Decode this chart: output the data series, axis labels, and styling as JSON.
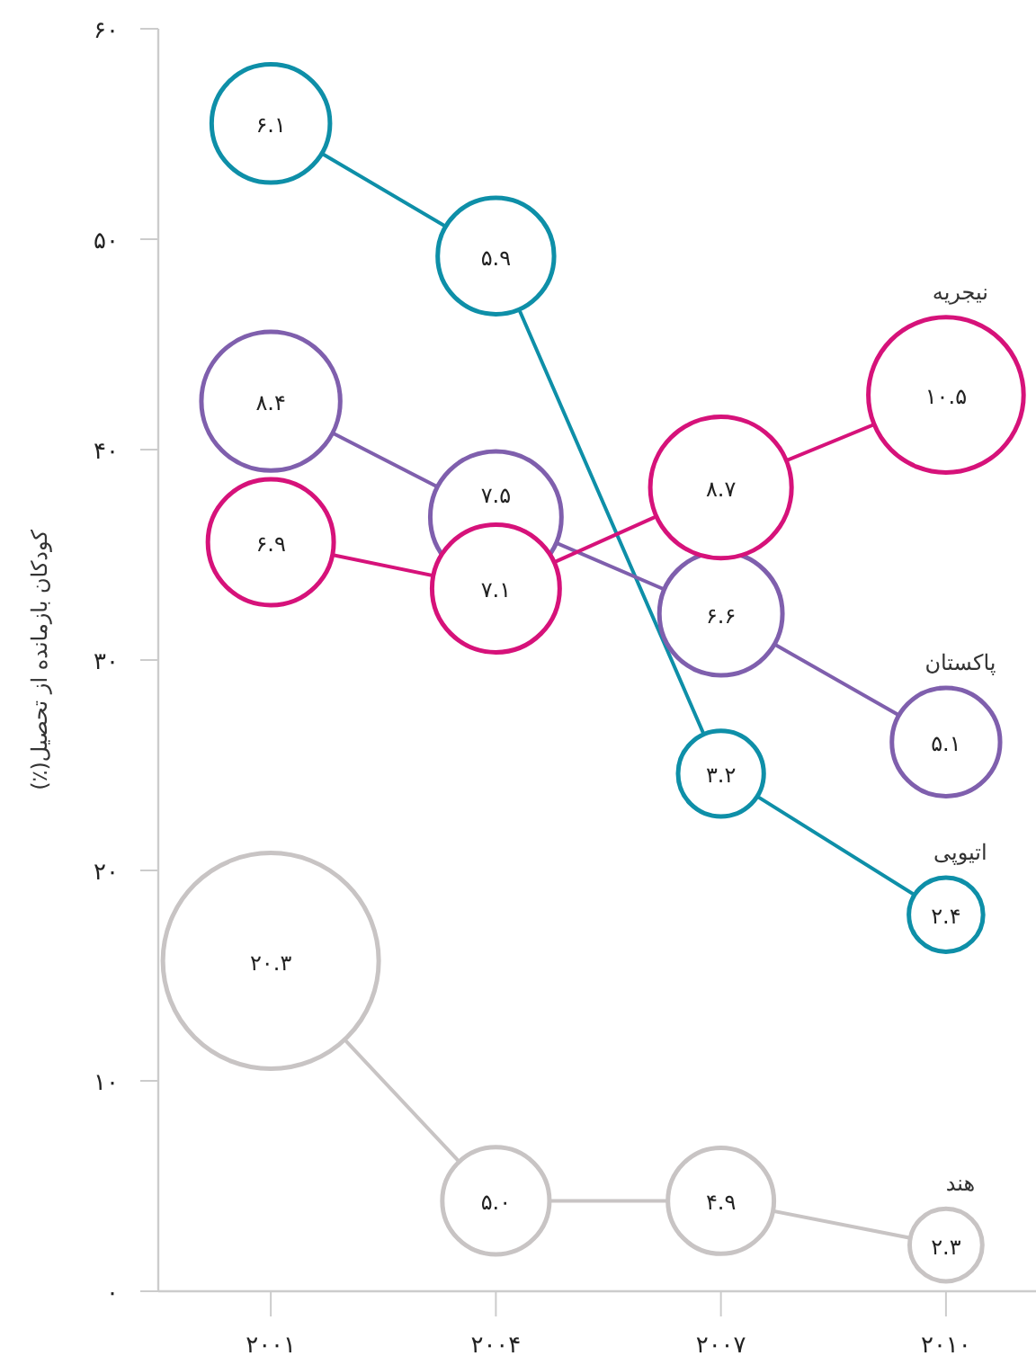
{
  "chart_data": {
    "type": "bubble",
    "ylabel": "کودکان بازمانده از تحصیل(٪)",
    "x": [
      2001,
      2004,
      2007,
      2010
    ],
    "xlim": [
      1999.5,
      2011.2
    ],
    "xticks": [
      {
        "value": 2001,
        "label": "۲۰۰۱"
      },
      {
        "value": 2004,
        "label": "۲۰۰۴"
      },
      {
        "value": 2007,
        "label": "۲۰۰۷"
      },
      {
        "value": 2010,
        "label": "۲۰۱۰"
      }
    ],
    "ylim": [
      0,
      60
    ],
    "yticks": [
      {
        "value": 0,
        "label": "۰"
      },
      {
        "value": 10,
        "label": "۱۰"
      },
      {
        "value": 20,
        "label": "۲۰"
      },
      {
        "value": 30,
        "label": "۳۰"
      },
      {
        "value": 40,
        "label": "۴۰"
      },
      {
        "value": 50,
        "label": "۵۰"
      },
      {
        "value": 60,
        "label": "۶۰"
      }
    ],
    "line_style": "solid",
    "legend": false,
    "grid": false,
    "series": [
      {
        "name": "اتیوپی",
        "color": "#0e8fa8",
        "values": [
          55.5,
          49.2,
          24.6,
          17.9
        ],
        "sizes": [
          6.1,
          5.9,
          3.2,
          2.4
        ],
        "value_labels": [
          "۶.۱",
          "۵.۹",
          "۳.۲",
          "۲.۴"
        ]
      },
      {
        "name": "پاکستان",
        "color": "#7f5fad",
        "values": [
          42.3,
          36.8,
          32.2,
          26.1
        ],
        "sizes": [
          8.4,
          7.5,
          6.6,
          5.1
        ],
        "value_labels": [
          "۸.۴",
          "۷.۵",
          "۶.۶",
          "۵.۱"
        ]
      },
      {
        "name": "نیجریه",
        "color": "#d6127a",
        "values": [
          35.6,
          33.4,
          38.2,
          42.6
        ],
        "sizes": [
          6.9,
          7.1,
          8.7,
          10.5
        ],
        "value_labels": [
          "۶.۹",
          "۷.۱",
          "۸.۷",
          "۱۰.۵"
        ]
      },
      {
        "name": "هند",
        "color": "#c8c4c4",
        "values": [
          15.7,
          4.3,
          4.3,
          2.2
        ],
        "sizes": [
          20.3,
          5.0,
          4.9,
          2.3
        ],
        "value_labels": [
          "۲۰.۳",
          "۵.۰",
          "۴.۹",
          "۲.۳"
        ]
      }
    ]
  }
}
